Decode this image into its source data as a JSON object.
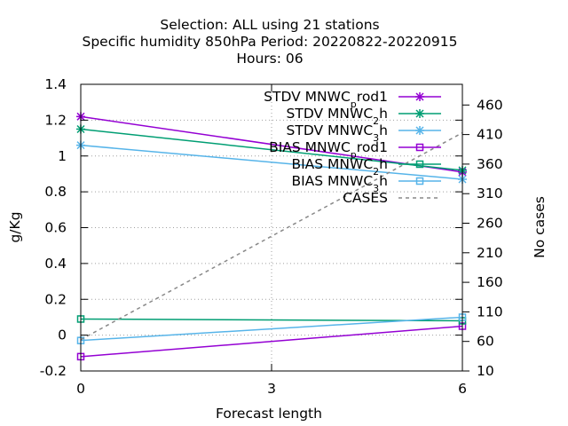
{
  "chart_data": {
    "type": "line",
    "title_lines": [
      "Selection: ALL using    21 stations",
      "Specific humidity 850hPa   Period: 20220822-20220915",
      "Hours:  06"
    ],
    "xlabel": "Forecast length",
    "ylabel": "g/Kg",
    "y2label": "No cases",
    "x_ticks": [
      0,
      3,
      6
    ],
    "xlim": [
      0,
      6
    ],
    "ylim": [
      -0.2,
      1.4
    ],
    "y_ticks": [
      -0.2,
      0,
      0.2,
      0.4,
      0.6,
      0.8,
      1,
      1.2,
      1.4
    ],
    "y_tick_labels": [
      "-0.2",
      "0",
      "0.2",
      "0.4",
      "0.6",
      "0.8",
      "1",
      "1.2",
      "1.4"
    ],
    "y2lim": [
      10,
      495
    ],
    "y2_ticks": [
      10,
      60,
      110,
      160,
      210,
      260,
      310,
      360,
      410,
      460
    ],
    "grid": true,
    "legend_position": "top-right",
    "x": [
      0,
      6
    ],
    "series": [
      {
        "label_parts": [
          [
            "STDV MNWC",
            ""
          ],
          [
            "p",
            "sub"
          ],
          [
            "rod1",
            ""
          ]
        ],
        "values": [
          1.22,
          0.91
        ],
        "color": "#9400d3",
        "marker": "x",
        "axis": "y1",
        "dash": false
      },
      {
        "label_parts": [
          [
            "STDV MNWC",
            ""
          ],
          [
            "2",
            "sub"
          ],
          [
            "h",
            ""
          ]
        ],
        "values": [
          1.15,
          0.92
        ],
        "color": "#009e73",
        "marker": "x",
        "axis": "y1",
        "dash": false
      },
      {
        "label_parts": [
          [
            "STDV MNWC",
            ""
          ],
          [
            "3",
            "sub"
          ],
          [
            "h",
            ""
          ]
        ],
        "values": [
          1.06,
          0.87
        ],
        "color": "#56b4e9",
        "marker": "x",
        "axis": "y1",
        "dash": false
      },
      {
        "label_parts": [
          [
            "BIAS MNWC",
            ""
          ],
          [
            "p",
            "sub"
          ],
          [
            "rod1",
            ""
          ]
        ],
        "values": [
          -0.12,
          0.05
        ],
        "color": "#9400d3",
        "marker": "square",
        "axis": "y1",
        "dash": false
      },
      {
        "label_parts": [
          [
            "BIAS MNWC",
            ""
          ],
          [
            "2",
            "sub"
          ],
          [
            "h",
            ""
          ]
        ],
        "values": [
          0.09,
          0.08
        ],
        "color": "#009e73",
        "marker": "square",
        "axis": "y1",
        "dash": false
      },
      {
        "label_parts": [
          [
            "BIAS MNWC",
            ""
          ],
          [
            "3",
            "sub"
          ],
          [
            "h",
            ""
          ]
        ],
        "values": [
          -0.03,
          0.1
        ],
        "color": "#56b4e9",
        "marker": "square",
        "axis": "y1",
        "dash": false
      },
      {
        "label_parts": [
          [
            "CASES",
            ""
          ]
        ],
        "values": [
          63,
          413
        ],
        "color": "#888888",
        "marker": "none",
        "axis": "y2",
        "dash": true
      }
    ]
  }
}
